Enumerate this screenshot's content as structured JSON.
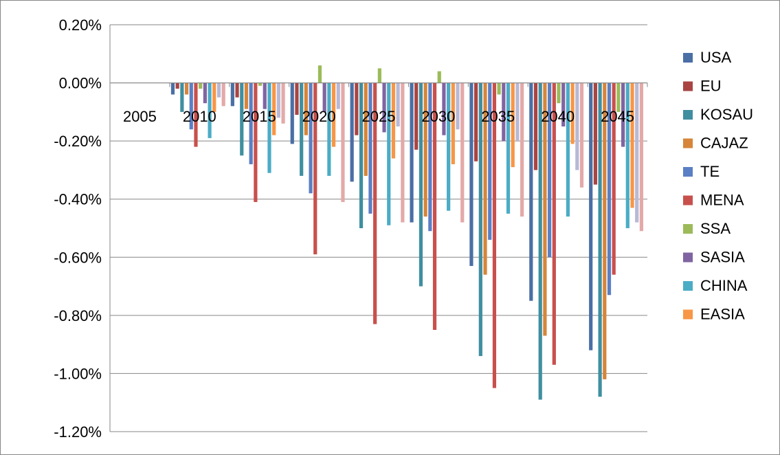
{
  "chart_data": {
    "type": "bar",
    "title": "",
    "xlabel": "",
    "ylabel": "",
    "ylim": [
      -0.012,
      0.002
    ],
    "yticks": [
      0.002,
      0.0,
      -0.002,
      -0.004,
      -0.006,
      -0.008,
      -0.01,
      -0.012
    ],
    "ytick_labels": [
      "0.20%",
      "0.00%",
      "-0.20%",
      "-0.40%",
      "-0.60%",
      "-0.80%",
      "-1.00%",
      "-1.20%"
    ],
    "grid": true,
    "legend_position": "right",
    "categories": [
      "2005",
      "2010",
      "2015",
      "2020",
      "2025",
      "2030",
      "2035",
      "2040",
      "2045"
    ],
    "series": [
      {
        "name": "USA",
        "color": "#4A6FA5",
        "values": [
          0,
          -0.0004,
          -0.0008,
          -0.0021,
          -0.0034,
          -0.0048,
          -0.0063,
          -0.0075,
          -0.0092
        ]
      },
      {
        "name": "EU",
        "color": "#A94442",
        "values": [
          0,
          -0.0002,
          -0.0005,
          -0.0011,
          -0.0018,
          -0.0023,
          -0.0027,
          -0.003,
          -0.0035
        ]
      },
      {
        "name": "KOSAU",
        "color": "#3F8FA0",
        "values": [
          0,
          -0.001,
          -0.0025,
          -0.0032,
          -0.005,
          -0.007,
          -0.0094,
          -0.0109,
          -0.0108
        ]
      },
      {
        "name": "CAJAZ",
        "color": "#D6853A",
        "values": [
          0,
          -0.0004,
          -0.0009,
          -0.0018,
          -0.0032,
          -0.0046,
          -0.0066,
          -0.0087,
          -0.0102
        ]
      },
      {
        "name": "TE",
        "color": "#5B7FC4",
        "values": [
          0,
          -0.0016,
          -0.0028,
          -0.0038,
          -0.0045,
          -0.0051,
          -0.0054,
          -0.006,
          -0.0073
        ]
      },
      {
        "name": "MENA",
        "color": "#C8504C",
        "values": [
          0,
          -0.0022,
          -0.0041,
          -0.0059,
          -0.0083,
          -0.0085,
          -0.0105,
          -0.0097,
          -0.0066
        ]
      },
      {
        "name": "SSA",
        "color": "#9BBB59",
        "values": [
          0,
          -0.0002,
          -0.0001,
          0.0006,
          0.0005,
          0.0004,
          -0.0004,
          -0.0007,
          -0.001
        ]
      },
      {
        "name": "SASIA",
        "color": "#8064A2",
        "values": [
          0,
          -0.0007,
          -0.0009,
          -0.001,
          -0.0017,
          -0.0018,
          -0.002,
          -0.0015,
          -0.0022
        ]
      },
      {
        "name": "CHINA",
        "color": "#4BACC6",
        "values": [
          0,
          -0.0019,
          -0.0031,
          -0.0032,
          -0.0049,
          -0.0044,
          -0.0045,
          -0.0046,
          -0.005
        ]
      },
      {
        "name": "EASIA",
        "color": "#F79646",
        "values": [
          0,
          -0.001,
          -0.0018,
          -0.0022,
          -0.0026,
          -0.0028,
          -0.0029,
          -0.0021,
          -0.0043
        ]
      },
      {
        "name": "",
        "color": "#B7B9D6",
        "values": [
          0,
          -0.0005,
          -0.0012,
          -0.0009,
          -0.0015,
          -0.0016,
          -0.002,
          -0.003,
          -0.0048
        ]
      },
      {
        "name": "",
        "color": "#E3A9A8",
        "values": [
          0,
          -0.0008,
          -0.0014,
          -0.0041,
          -0.0048,
          -0.0048,
          -0.0046,
          -0.0036,
          -0.0051
        ]
      }
    ]
  }
}
